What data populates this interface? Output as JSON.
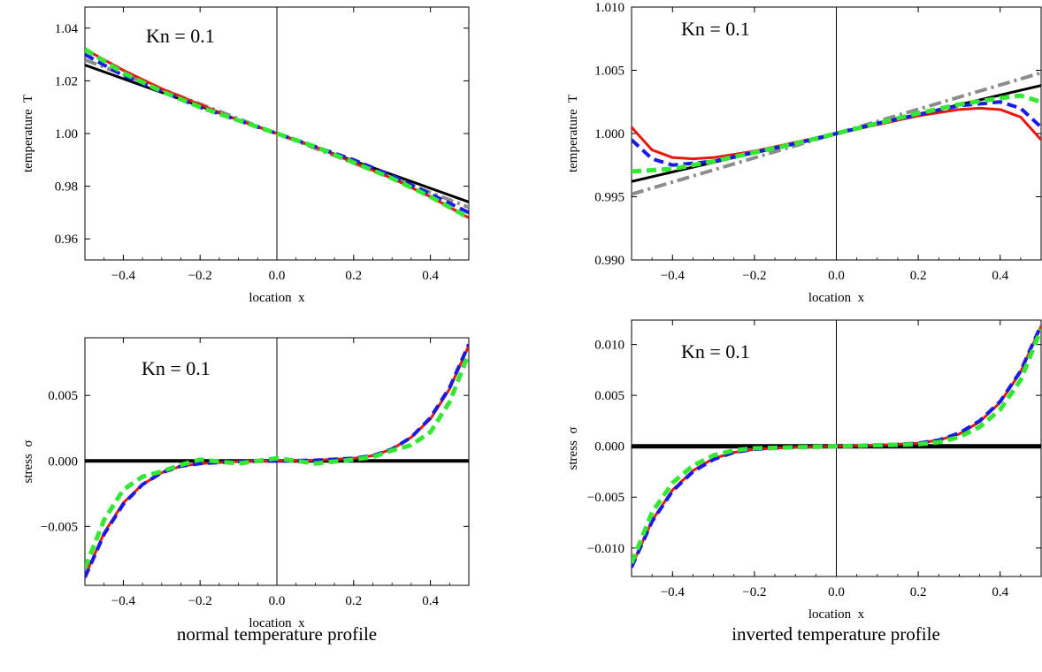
{
  "captions": {
    "left": "normal temperature profile",
    "right": "inverted temperature profile"
  },
  "colors": {
    "black": "#000000",
    "red": "#e8170f",
    "blue": "#1a1ae6",
    "green": "#33e833",
    "gray": "#8c8c8c"
  },
  "chart_data": [
    {
      "id": "p1",
      "type": "line",
      "annotation": "Kn = 0.1",
      "xlabel": "location  x",
      "ylabel": "temperature  T",
      "xlim": [
        -0.5,
        0.5
      ],
      "ylim": [
        0.952,
        1.048
      ],
      "xticks": [
        -0.4,
        -0.2,
        0.0,
        0.2,
        0.4
      ],
      "xtick_labels": [
        "−0.4",
        "−0.2",
        "0.0",
        "0.2",
        "0.4"
      ],
      "yticks": [
        0.96,
        0.98,
        1.0,
        1.02,
        1.04
      ],
      "ytick_labels": [
        "0.96",
        "0.98",
        "1.00",
        "1.02",
        "1.04"
      ],
      "series": [
        {
          "color": "black",
          "style": "solid",
          "width": 3,
          "x": [
            -0.5,
            0.5
          ],
          "y": [
            1.026,
            0.974
          ]
        },
        {
          "color": "gray",
          "style": "dashdot",
          "width": 4,
          "x": [
            -0.5,
            0.5
          ],
          "y": [
            1.028,
            0.972
          ]
        },
        {
          "color": "red",
          "style": "solid",
          "width": 3,
          "x": [
            -0.5,
            -0.4,
            -0.3,
            -0.2,
            -0.1,
            0.0,
            0.1,
            0.2,
            0.3,
            0.4,
            0.5
          ],
          "y": [
            1.032,
            1.024,
            1.017,
            1.011,
            1.005,
            1.0,
            0.995,
            0.989,
            0.983,
            0.976,
            0.968
          ]
        },
        {
          "color": "blue",
          "style": "dashed",
          "width": 4,
          "x": [
            -0.5,
            -0.4,
            -0.3,
            -0.2,
            -0.1,
            0.0,
            0.1,
            0.2,
            0.3,
            0.4,
            0.5
          ],
          "y": [
            1.03,
            1.022,
            1.016,
            1.01,
            1.005,
            1.0,
            0.995,
            0.99,
            0.984,
            0.977,
            0.97
          ]
        },
        {
          "color": "green",
          "style": "dashed",
          "width": 5,
          "x": [
            -0.5,
            -0.4,
            -0.3,
            -0.2,
            -0.1,
            0.0,
            0.1,
            0.2,
            0.3,
            0.4,
            0.5
          ],
          "y": [
            1.032,
            1.023,
            1.016,
            1.01,
            1.005,
            1.0,
            0.995,
            0.989,
            0.983,
            0.976,
            0.968
          ]
        }
      ]
    },
    {
      "id": "p2",
      "type": "line",
      "annotation": "Kn = 0.1",
      "xlabel": "location  x",
      "ylabel": "temperature  T",
      "xlim": [
        -0.5,
        0.5
      ],
      "ylim": [
        0.99,
        1.01
      ],
      "xticks": [
        -0.4,
        -0.2,
        0.0,
        0.2,
        0.4
      ],
      "xtick_labels": [
        "−0.4",
        "−0.2",
        "0.0",
        "0.2",
        "0.4"
      ],
      "yticks": [
        0.99,
        0.995,
        1.0,
        1.005,
        1.01
      ],
      "ytick_labels": [
        "0.990",
        "0.995",
        "1.000",
        "1.005",
        "1.010"
      ],
      "series": [
        {
          "color": "gray",
          "style": "dashdot",
          "width": 4,
          "x": [
            -0.5,
            0.5
          ],
          "y": [
            0.9952,
            1.0048
          ]
        },
        {
          "color": "black",
          "style": "solid",
          "width": 3,
          "x": [
            -0.5,
            0.5
          ],
          "y": [
            0.9962,
            1.0038
          ]
        },
        {
          "color": "red",
          "style": "solid",
          "width": 3,
          "x": [
            -0.5,
            -0.45,
            -0.4,
            -0.35,
            -0.3,
            -0.2,
            -0.1,
            0.0,
            0.1,
            0.2,
            0.3,
            0.35,
            0.4,
            0.45,
            0.5
          ],
          "y": [
            1.0005,
            0.9987,
            0.9981,
            0.998,
            0.9981,
            0.9986,
            0.9993,
            1.0,
            1.0007,
            1.0014,
            1.0019,
            1.002,
            1.0019,
            1.0013,
            0.9995
          ]
        },
        {
          "color": "blue",
          "style": "dashed",
          "width": 4,
          "x": [
            -0.5,
            -0.45,
            -0.4,
            -0.3,
            -0.2,
            -0.1,
            0.0,
            0.1,
            0.2,
            0.3,
            0.4,
            0.45,
            0.5
          ],
          "y": [
            0.9995,
            0.998,
            0.9975,
            0.9978,
            0.9985,
            0.9992,
            1.0,
            1.0008,
            1.0015,
            1.0022,
            1.0025,
            1.002,
            1.0005
          ]
        },
        {
          "color": "green",
          "style": "dashed",
          "width": 5,
          "x": [
            -0.5,
            -0.4,
            -0.3,
            -0.2,
            -0.1,
            0.0,
            0.1,
            0.2,
            0.3,
            0.4,
            0.45,
            0.5
          ],
          "y": [
            0.997,
            0.9972,
            0.9978,
            0.9985,
            0.9992,
            1.0,
            1.0008,
            1.0016,
            1.0023,
            1.0028,
            1.003,
            1.0025
          ]
        }
      ]
    },
    {
      "id": "p3",
      "type": "line",
      "annotation": "Kn = 0.1",
      "xlabel": "location  x",
      "ylabel": "stress  σ",
      "xlim": [
        -0.5,
        0.5
      ],
      "ylim": [
        -0.0095,
        0.0094
      ],
      "xticks": [
        -0.4,
        -0.2,
        0.0,
        0.2,
        0.4
      ],
      "xtick_labels": [
        "−0.4",
        "−0.2",
        "0.0",
        "0.2",
        "0.4"
      ],
      "yticks": [
        -0.005,
        0.0,
        0.005
      ],
      "ytick_labels": [
        "−0.005",
        "0.000",
        "0.005"
      ],
      "series": [
        {
          "color": "black",
          "style": "solid",
          "width": 4,
          "x": [
            -0.5,
            0.5
          ],
          "y": [
            0.0,
            0.0
          ]
        },
        {
          "color": "red",
          "style": "solid",
          "width": 3,
          "x": [
            -0.5,
            -0.45,
            -0.4,
            -0.35,
            -0.3,
            -0.25,
            -0.2,
            -0.1,
            0.0,
            0.1,
            0.2,
            0.25,
            0.3,
            0.35,
            0.4,
            0.45,
            0.5
          ],
          "y": [
            -0.0088,
            -0.0055,
            -0.0032,
            -0.0018,
            -0.0009,
            -0.0004,
            -0.0002,
            -5e-05,
            0.0,
            5e-05,
            0.0002,
            0.0004,
            0.0009,
            0.0018,
            0.0032,
            0.0055,
            0.0088
          ]
        },
        {
          "color": "blue",
          "style": "dashed",
          "width": 4,
          "x": [
            -0.5,
            -0.45,
            -0.4,
            -0.35,
            -0.3,
            -0.25,
            -0.2,
            -0.1,
            0.0,
            0.1,
            0.2,
            0.25,
            0.3,
            0.35,
            0.4,
            0.45,
            0.5
          ],
          "y": [
            -0.0089,
            -0.0056,
            -0.0033,
            -0.0018,
            -0.0009,
            -0.0004,
            -0.0002,
            -5e-05,
            0.0,
            5e-05,
            0.0002,
            0.0004,
            0.0009,
            0.0018,
            0.0033,
            0.0056,
            0.0089
          ]
        },
        {
          "color": "green",
          "style": "dashed",
          "width": 5,
          "x": [
            -0.5,
            -0.45,
            -0.4,
            -0.35,
            -0.3,
            -0.25,
            -0.2,
            -0.1,
            0.0,
            0.1,
            0.2,
            0.25,
            0.3,
            0.35,
            0.4,
            0.45,
            0.5
          ],
          "y": [
            -0.0082,
            -0.0045,
            -0.0022,
            -0.0012,
            -0.0008,
            -0.0003,
            0.0001,
            -0.0002,
            0.0002,
            -0.0002,
            0.0001,
            0.0003,
            0.0008,
            0.0012,
            0.0022,
            0.0045,
            0.0082
          ]
        }
      ]
    },
    {
      "id": "p4",
      "type": "line",
      "annotation": "Kn = 0.1",
      "xlabel": "location  x",
      "ylabel": "stress  σ",
      "xlim": [
        -0.5,
        0.5
      ],
      "ylim": [
        -0.0128,
        0.0124
      ],
      "xticks": [
        -0.4,
        -0.2,
        0.0,
        0.2,
        0.4
      ],
      "xtick_labels": [
        "−0.4",
        "−0.2",
        "0.0",
        "0.2",
        "0.4"
      ],
      "yticks": [
        -0.01,
        -0.005,
        0.0,
        0.005,
        0.01
      ],
      "ytick_labels": [
        "−0.010",
        "−0.005",
        "0.000",
        "0.005",
        "0.010"
      ],
      "series": [
        {
          "color": "black",
          "style": "solid",
          "width": 5,
          "x": [
            -0.5,
            0.5
          ],
          "y": [
            0.0,
            0.0
          ]
        },
        {
          "color": "red",
          "style": "solid",
          "width": 3,
          "x": [
            -0.5,
            -0.45,
            -0.4,
            -0.35,
            -0.3,
            -0.25,
            -0.2,
            -0.1,
            0.0,
            0.1,
            0.2,
            0.25,
            0.3,
            0.35,
            0.4,
            0.45,
            0.5
          ],
          "y": [
            -0.0118,
            -0.0073,
            -0.0043,
            -0.0024,
            -0.0012,
            -0.0006,
            -0.0003,
            -0.0001,
            0.0,
            0.0001,
            0.0003,
            0.0006,
            0.0012,
            0.0024,
            0.0043,
            0.0073,
            0.0118
          ]
        },
        {
          "color": "blue",
          "style": "dashed",
          "width": 4,
          "x": [
            -0.5,
            -0.45,
            -0.4,
            -0.35,
            -0.3,
            -0.25,
            -0.2,
            -0.1,
            0.0,
            0.1,
            0.2,
            0.25,
            0.3,
            0.35,
            0.4,
            0.45,
            0.5
          ],
          "y": [
            -0.0119,
            -0.0074,
            -0.0044,
            -0.0025,
            -0.0013,
            -0.0006,
            -0.0003,
            -0.0001,
            0.0,
            0.0001,
            0.0003,
            0.0006,
            0.0013,
            0.0025,
            0.0044,
            0.0074,
            0.0119
          ]
        },
        {
          "color": "green",
          "style": "dashed",
          "width": 5,
          "x": [
            -0.5,
            -0.45,
            -0.4,
            -0.35,
            -0.3,
            -0.25,
            -0.2,
            -0.1,
            0.0,
            0.1,
            0.2,
            0.25,
            0.3,
            0.35,
            0.4,
            0.45,
            0.5
          ],
          "y": [
            -0.0115,
            -0.0065,
            -0.0036,
            -0.0019,
            -0.0009,
            -0.0004,
            -0.0002,
            -0.0001,
            0.0,
            0.0001,
            0.0002,
            0.0004,
            0.0009,
            0.0019,
            0.0036,
            0.0065,
            0.0115
          ]
        }
      ]
    }
  ]
}
